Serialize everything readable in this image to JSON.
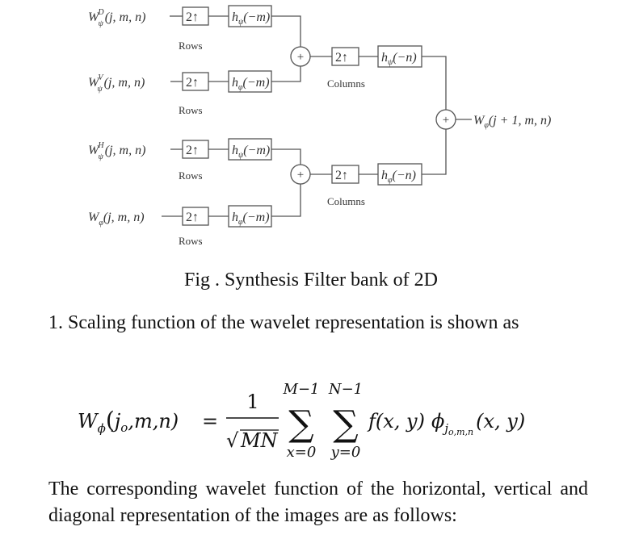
{
  "diagram": {
    "inputs": [
      "W",
      "W",
      "W",
      "W"
    ],
    "input_args": [
      "(j, m, n)",
      "(j, m, n)",
      "(j, m, n)",
      "(j, m, n)"
    ],
    "input_superscripts": [
      "D",
      "V",
      "H",
      ""
    ],
    "input_subscripts": [
      "ψ",
      "ψ",
      "ψ",
      "φ"
    ],
    "upsample_label": "2↑",
    "stage1_filters": [
      {
        "h": "h",
        "sub": "ψ",
        "arg": "(−m)"
      },
      {
        "h": "h",
        "sub": "φ",
        "arg": "(−m)"
      },
      {
        "h": "h",
        "sub": "ψ",
        "arg": "(−m)"
      },
      {
        "h": "h",
        "sub": "φ",
        "arg": "(−m)"
      }
    ],
    "rows_label": "Rows",
    "stage2_filters": [
      {
        "h": "h",
        "sub": "ψ",
        "arg": "(−n)"
      },
      {
        "h": "h",
        "sub": "φ",
        "arg": "(−n)"
      }
    ],
    "columns_label": "Columns",
    "adder_symbol": "+",
    "output": {
      "w": "W",
      "sub": "φ",
      "arg": "(j + 1, m, n)"
    }
  },
  "caption": "Fig   . Synthesis Filter bank of  2D",
  "paragraph1": "1. Scaling function of the wavelet representation is shown as",
  "formula": {
    "lhs_symbol": "W",
    "lhs_sub": "ϕ",
    "lhs_args_open": "(",
    "lhs_j": "j",
    "lhs_j_sub": "o",
    "lhs_rest": ",m,n)",
    "equals": "=",
    "numerator": "1",
    "sqrt_symbol": "√",
    "denominator": "MN",
    "sum1_upper": "M−1",
    "sum1_lower": "x=0",
    "sum2_upper": "N−1",
    "sum2_lower": "y=0",
    "sigma": "∑",
    "fxy": "f(x, y)",
    "phi": "ϕ",
    "phi_sub": "j",
    "phi_sub_sub": "o,m,n",
    "phi_args": "(x, y)"
  },
  "paragraph2": "The corresponding wavelet function of the horizontal, vertical and diagonal representation of the images are  as follows:"
}
